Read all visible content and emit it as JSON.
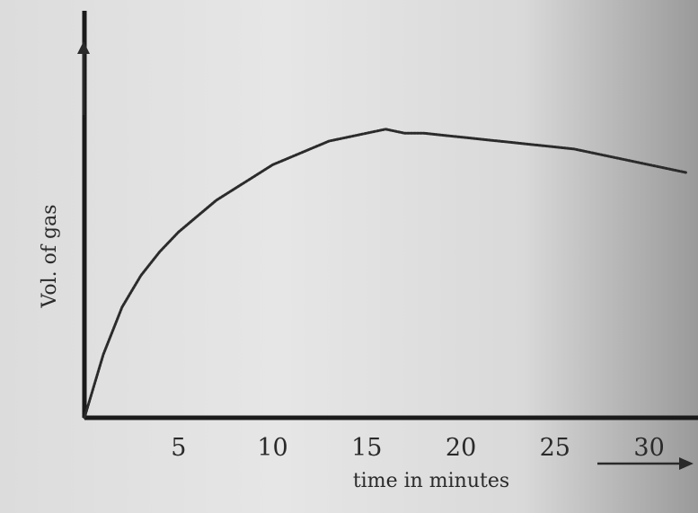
{
  "chart_data": {
    "type": "line",
    "xlabel": "time in minutes",
    "ylabel": "Vol. of gas",
    "x_ticks": [
      "5",
      "10",
      "15",
      "20",
      "25",
      "30"
    ],
    "xlim": [
      0,
      32.5
    ],
    "ylim": [
      0,
      1
    ],
    "series": [
      {
        "x": [
          0,
          0.5,
          1,
          2,
          3,
          4,
          5,
          6,
          7,
          8,
          9,
          10,
          11,
          12,
          13,
          14,
          15,
          16,
          17,
          18,
          20,
          22,
          24,
          26,
          28,
          30,
          32
        ],
        "y": [
          0,
          0.08,
          0.16,
          0.28,
          0.36,
          0.42,
          0.47,
          0.51,
          0.55,
          0.58,
          0.61,
          0.64,
          0.66,
          0.68,
          0.7,
          0.71,
          0.72,
          0.73,
          0.72,
          0.72,
          0.71,
          0.7,
          0.69,
          0.68,
          0.66,
          0.64,
          0.62
        ]
      }
    ],
    "grid": false,
    "legend": "none"
  },
  "colors": {
    "line": "#2b2b2b",
    "axis": "#1a1a1a"
  }
}
